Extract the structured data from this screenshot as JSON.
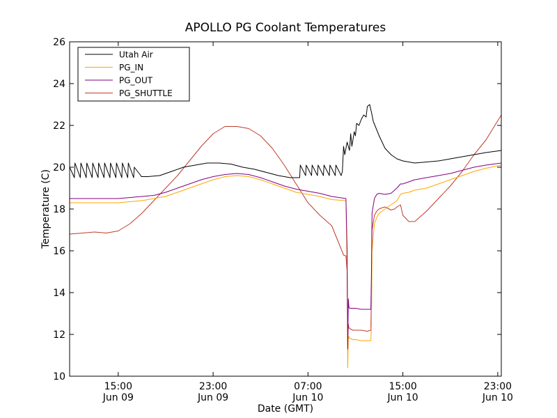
{
  "chart_data": {
    "type": "line",
    "title": "APOLLO PG Coolant Temperatures",
    "xlabel": "Date (GMT)",
    "ylabel": "Temperature (C)",
    "x_unit": "hours since Jun 09 00:00 GMT",
    "xlim": [
      10.9,
      47.3
    ],
    "ylim": [
      10,
      26
    ],
    "yticks": [
      10,
      12,
      14,
      16,
      18,
      20,
      22,
      24,
      26
    ],
    "xticks": [
      {
        "x": 15,
        "line1": "15:00",
        "line2": "Jun 09"
      },
      {
        "x": 23,
        "line1": "23:00",
        "line2": "Jun 09"
      },
      {
        "x": 31,
        "line1": "07:00",
        "line2": "Jun 10"
      },
      {
        "x": 39,
        "line1": "15:00",
        "line2": "Jun 10"
      },
      {
        "x": 47,
        "line1": "23:00",
        "line2": "Jun 10"
      }
    ],
    "legend_position": "top-left",
    "series": [
      {
        "name": "Utah Air",
        "color": "#000000",
        "x": [
          10.9,
          11.3,
          11.35,
          11.8,
          11.85,
          12.3,
          12.35,
          12.8,
          12.85,
          13.3,
          13.35,
          13.8,
          13.85,
          14.3,
          14.35,
          14.8,
          14.85,
          15.3,
          15.35,
          15.8,
          15.85,
          16.3,
          16.35,
          16.9,
          16.95,
          17.5,
          18.5,
          19.5,
          20.5,
          21.5,
          22.5,
          23.5,
          24.5,
          25.5,
          26.5,
          27.5,
          28.5,
          29.5,
          30.3,
          30.35,
          30.8,
          30.85,
          31.3,
          31.35,
          31.8,
          31.85,
          32.3,
          32.35,
          32.8,
          32.85,
          33.3,
          33.35,
          33.8,
          33.9,
          34.0,
          34.1,
          34.3,
          34.5,
          34.6,
          34.7,
          34.9,
          35.0,
          35.1,
          35.3,
          35.5,
          35.7,
          35.9,
          36.0,
          36.2,
          36.4,
          36.5,
          37.0,
          37.5,
          38.0,
          38.5,
          39.0,
          40.0,
          41.0,
          42.0,
          43.0,
          44.0,
          45.0,
          46.0,
          47.3
        ],
        "values": [
          20.0,
          19.5,
          20.2,
          19.5,
          20.2,
          19.5,
          20.2,
          19.5,
          20.2,
          19.5,
          20.2,
          19.5,
          20.2,
          19.5,
          20.2,
          19.5,
          20.2,
          19.5,
          20.2,
          19.5,
          20.2,
          19.5,
          20.0,
          19.6,
          19.55,
          19.55,
          19.6,
          19.8,
          20.0,
          20.1,
          20.2,
          20.2,
          20.15,
          20.0,
          19.9,
          19.75,
          19.6,
          19.5,
          19.5,
          20.1,
          19.6,
          20.1,
          19.6,
          20.1,
          19.6,
          20.1,
          19.6,
          20.1,
          19.6,
          20.1,
          19.6,
          20.1,
          19.6,
          19.8,
          21.0,
          20.6,
          21.2,
          20.8,
          21.6,
          21.0,
          21.7,
          21.5,
          22.1,
          22.0,
          22.3,
          22.5,
          22.4,
          22.9,
          23.0,
          22.5,
          22.2,
          21.5,
          20.9,
          20.6,
          20.4,
          20.3,
          20.2,
          20.25,
          20.3,
          20.4,
          20.5,
          20.6,
          20.7,
          20.8
        ]
      },
      {
        "name": "PG_IN",
        "color": "#ffa500",
        "x": [
          10.9,
          12.0,
          13.0,
          14.0,
          15.0,
          16.0,
          17.0,
          18.0,
          19.0,
          20.0,
          21.0,
          22.0,
          23.0,
          24.0,
          25.0,
          26.0,
          27.0,
          28.0,
          29.0,
          30.0,
          31.0,
          32.0,
          33.0,
          34.2,
          34.3,
          34.35,
          34.4,
          34.45,
          34.5,
          34.6,
          34.8,
          35.0,
          35.5,
          36.0,
          36.3,
          36.35,
          36.4,
          36.6,
          36.8,
          37.0,
          37.5,
          38.0,
          38.5,
          38.8,
          39.0,
          39.5,
          40.0,
          41.0,
          42.0,
          43.0,
          44.0,
          45.0,
          46.0,
          47.3
        ],
        "values": [
          18.3,
          18.3,
          18.3,
          18.3,
          18.3,
          18.35,
          18.4,
          18.5,
          18.6,
          18.8,
          19.0,
          19.2,
          19.4,
          19.55,
          19.6,
          19.55,
          19.4,
          19.2,
          19.0,
          18.8,
          18.7,
          18.6,
          18.45,
          18.4,
          15.0,
          10.4,
          11.8,
          11.9,
          11.8,
          11.8,
          11.75,
          11.75,
          11.7,
          11.7,
          11.7,
          12.5,
          16.0,
          17.3,
          17.6,
          17.8,
          18.0,
          18.2,
          18.4,
          18.7,
          18.75,
          18.8,
          18.9,
          19.0,
          19.2,
          19.4,
          19.6,
          19.8,
          19.95,
          20.1
        ]
      },
      {
        "name": "PG_OUT",
        "color": "#800080",
        "x": [
          10.9,
          12.0,
          13.0,
          14.0,
          15.0,
          16.0,
          17.0,
          18.0,
          19.0,
          20.0,
          21.0,
          22.0,
          23.0,
          24.0,
          25.0,
          26.0,
          27.0,
          28.0,
          29.0,
          30.0,
          31.0,
          32.0,
          33.0,
          34.2,
          34.3,
          34.35,
          34.4,
          34.45,
          34.5,
          34.6,
          34.8,
          35.0,
          35.5,
          36.0,
          36.3,
          36.35,
          36.4,
          36.6,
          36.8,
          37.0,
          37.5,
          38.0,
          38.5,
          38.8,
          39.0,
          39.5,
          40.0,
          41.0,
          42.0,
          43.0,
          44.0,
          45.0,
          46.0,
          47.3
        ],
        "values": [
          18.5,
          18.5,
          18.5,
          18.5,
          18.5,
          18.55,
          18.6,
          18.65,
          18.8,
          19.0,
          19.2,
          19.4,
          19.55,
          19.65,
          19.7,
          19.65,
          19.5,
          19.3,
          19.1,
          18.95,
          18.85,
          18.75,
          18.6,
          18.5,
          16.0,
          11.3,
          13.7,
          13.3,
          13.25,
          13.25,
          13.25,
          13.25,
          13.2,
          13.2,
          13.2,
          15.0,
          17.8,
          18.5,
          18.7,
          18.75,
          18.7,
          18.75,
          19.0,
          19.2,
          19.2,
          19.3,
          19.4,
          19.5,
          19.6,
          19.7,
          19.85,
          20.0,
          20.1,
          20.2
        ]
      },
      {
        "name": "PG_SHUTTLE",
        "color": "#c0392b",
        "x": [
          10.9,
          12.0,
          13.0,
          14.0,
          15.0,
          16.0,
          17.0,
          18.0,
          19.0,
          20.0,
          21.0,
          22.0,
          23.0,
          24.0,
          25.0,
          26.0,
          27.0,
          28.0,
          29.0,
          30.0,
          31.0,
          32.0,
          33.0,
          33.5,
          34.0,
          34.2,
          34.3,
          34.35,
          34.4,
          34.45,
          34.5,
          34.6,
          34.8,
          35.0,
          35.5,
          36.0,
          36.3,
          36.35,
          36.4,
          36.6,
          36.8,
          37.0,
          37.2,
          37.5,
          38.0,
          38.3,
          38.5,
          38.8,
          39.0,
          39.5,
          40.0,
          41.0,
          42.0,
          43.0,
          44.0,
          45.0,
          46.0,
          47.3
        ],
        "values": [
          16.8,
          16.85,
          16.9,
          16.85,
          16.95,
          17.3,
          17.8,
          18.4,
          19.0,
          19.6,
          20.3,
          21.0,
          21.6,
          21.95,
          21.95,
          21.85,
          21.5,
          20.9,
          20.1,
          19.2,
          18.3,
          17.7,
          17.2,
          16.5,
          15.8,
          15.75,
          15.0,
          11.5,
          12.5,
          12.3,
          12.3,
          12.25,
          12.2,
          12.2,
          12.2,
          12.15,
          12.2,
          14.0,
          17.0,
          17.7,
          17.9,
          18.0,
          18.05,
          18.1,
          17.95,
          18.0,
          18.1,
          18.2,
          17.7,
          17.4,
          17.4,
          17.9,
          18.5,
          19.1,
          19.8,
          20.6,
          21.3,
          22.5
        ]
      }
    ]
  }
}
